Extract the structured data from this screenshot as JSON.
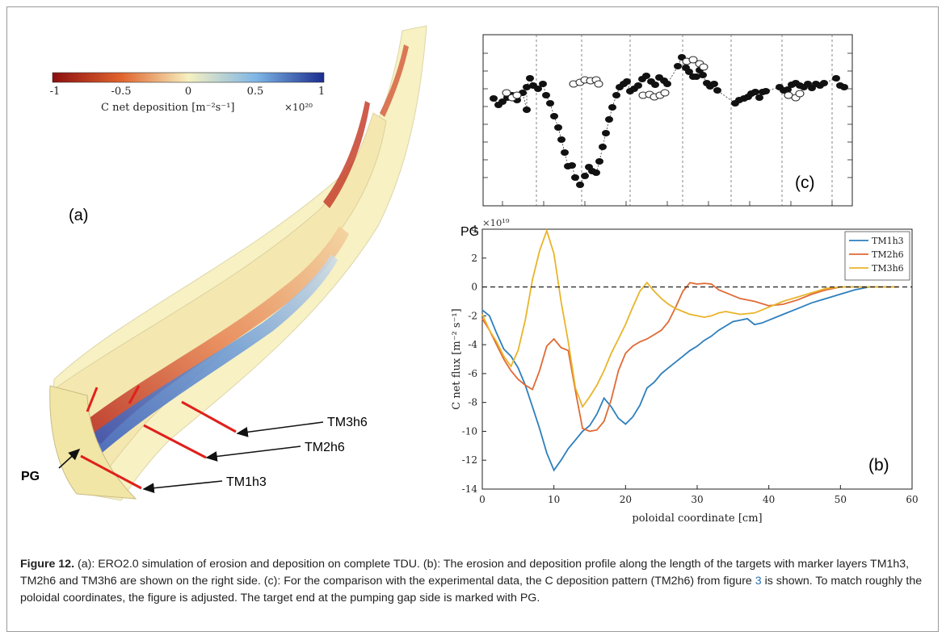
{
  "panel_a": {
    "label": "(a)",
    "colorbar": {
      "ticks": [
        "-1",
        "-0.5",
        "0",
        "0.5",
        "1"
      ],
      "label": "C net deposition [m⁻²s⁻¹]",
      "multiplier": "×10²⁰",
      "colors": [
        "#8b0e10",
        "#e0632c",
        "#f6f0c0",
        "#7eb6e6",
        "#1b2d8f"
      ]
    },
    "markers": [
      {
        "name": "TM3h6",
        "text": "TM3h6"
      },
      {
        "name": "TM2h6",
        "text": "TM2h6"
      },
      {
        "name": "TM1h3",
        "text": "TM1h3"
      },
      {
        "name": "PG",
        "text": "PG"
      }
    ]
  },
  "panel_c": {
    "label": "(c)"
  },
  "panel_b": {
    "label": "(b)",
    "pg_label": "PG"
  },
  "chart_data": {
    "type": "line",
    "xlabel": "poloidal coordinate [cm]",
    "ylabel": "C net flux [m⁻² s⁻¹]",
    "y_multiplier": "×10¹⁹",
    "xlim": [
      0,
      60
    ],
    "ylim": [
      -14,
      4
    ],
    "xticks": [
      "0",
      "10",
      "20",
      "30",
      "40",
      "50",
      "60"
    ],
    "yticks": [
      "4",
      "2",
      "0",
      "-2",
      "-4",
      "-6",
      "-8",
      "-10",
      "-12",
      "-14"
    ],
    "legend_position": "top-right",
    "zero_line": "dashed",
    "series": [
      {
        "name": "TM1h3",
        "color": "#2d7fbd",
        "x": [
          0,
          1,
          2,
          3,
          4,
          5,
          6,
          7,
          8,
          9,
          10,
          11,
          12,
          13,
          14,
          15,
          16,
          17,
          18,
          19,
          20,
          21,
          22,
          23,
          24,
          25,
          26,
          27,
          28,
          29,
          30,
          31,
          32,
          33,
          34,
          35,
          36,
          37,
          38,
          39,
          40,
          42,
          44,
          46,
          48,
          50,
          52,
          54,
          56,
          58
        ],
        "y": [
          -1.6,
          -2.0,
          -3.2,
          -4.3,
          -4.8,
          -5.6,
          -6.8,
          -8.3,
          -9.8,
          -11.5,
          -12.7,
          -12.0,
          -11.2,
          -10.6,
          -10.0,
          -9.6,
          -8.8,
          -7.7,
          -8.3,
          -9.1,
          -9.5,
          -9.0,
          -8.2,
          -7.0,
          -6.6,
          -6.0,
          -5.6,
          -5.2,
          -4.8,
          -4.4,
          -4.1,
          -3.7,
          -3.4,
          -3.0,
          -2.7,
          -2.4,
          -2.3,
          -2.2,
          -2.6,
          -2.5,
          -2.3,
          -1.9,
          -1.5,
          -1.1,
          -0.8,
          -0.5,
          -0.2,
          0.0,
          0.0,
          0.0
        ]
      },
      {
        "name": "TM2h6",
        "color": "#e06a35",
        "x": [
          0,
          1,
          2,
          3,
          4,
          5,
          6,
          7,
          8,
          9,
          10,
          11,
          12,
          13,
          14,
          15,
          16,
          17,
          18,
          19,
          20,
          21,
          22,
          23,
          24,
          25,
          26,
          27,
          28,
          29,
          30,
          31,
          32,
          33,
          34,
          35,
          36,
          38,
          40,
          42,
          44,
          46,
          48,
          50,
          52,
          54,
          56,
          58
        ],
        "y": [
          -2.2,
          -3.0,
          -4.0,
          -5.0,
          -5.8,
          -6.4,
          -6.8,
          -7.1,
          -5.8,
          -4.1,
          -3.6,
          -4.2,
          -4.4,
          -7.2,
          -9.8,
          -10.0,
          -9.9,
          -9.3,
          -7.8,
          -5.8,
          -4.6,
          -4.1,
          -3.8,
          -3.6,
          -3.3,
          -3.0,
          -2.4,
          -1.4,
          -0.3,
          0.3,
          0.2,
          0.25,
          0.2,
          -0.2,
          -0.4,
          -0.6,
          -0.8,
          -1.0,
          -1.3,
          -1.2,
          -0.9,
          -0.5,
          -0.2,
          0.0,
          0.0,
          0.0,
          0.0,
          0.0
        ]
      },
      {
        "name": "TM3h6",
        "color": "#e9b42a",
        "x": [
          0,
          1,
          2,
          3,
          4,
          5,
          6,
          7,
          8,
          9,
          10,
          11,
          12,
          13,
          14,
          15,
          16,
          17,
          18,
          19,
          20,
          21,
          22,
          23,
          24,
          25,
          26,
          27,
          28,
          29,
          30,
          31,
          32,
          33,
          34,
          35,
          36,
          38,
          40,
          42,
          44,
          46,
          48,
          50,
          52,
          54,
          56,
          58
        ],
        "y": [
          -1.9,
          -3.0,
          -3.8,
          -4.8,
          -5.5,
          -4.4,
          -2.3,
          0.5,
          2.5,
          3.9,
          2.3,
          -1.0,
          -3.8,
          -7.0,
          -8.3,
          -7.6,
          -6.8,
          -5.8,
          -4.6,
          -3.6,
          -2.6,
          -1.4,
          -0.3,
          0.3,
          -0.3,
          -0.8,
          -1.2,
          -1.5,
          -1.7,
          -1.9,
          -2.0,
          -2.1,
          -2.0,
          -1.8,
          -1.7,
          -1.8,
          -1.9,
          -1.8,
          -1.4,
          -1.0,
          -0.7,
          -0.4,
          -0.1,
          0.0,
          0.0,
          0.0,
          0.0,
          0.0
        ]
      }
    ]
  },
  "caption": {
    "figure_label": "Figure 12.",
    "text_1": " (a): ERO2.0 simulation of erosion and deposition on complete TDU. (b): The erosion and deposition profile along the length of the targets with marker layers TM1h3, TM2h6 and TM3h6 are shown on the right side. (c): For the comparison with the experimental data, the C deposition pattern (TM2h6) from figure ",
    "ref": "3",
    "text_2": " is shown. To match roughly the poloidal coordinates, the figure is adjusted. The target end at the pumping gap side is marked with PG."
  }
}
